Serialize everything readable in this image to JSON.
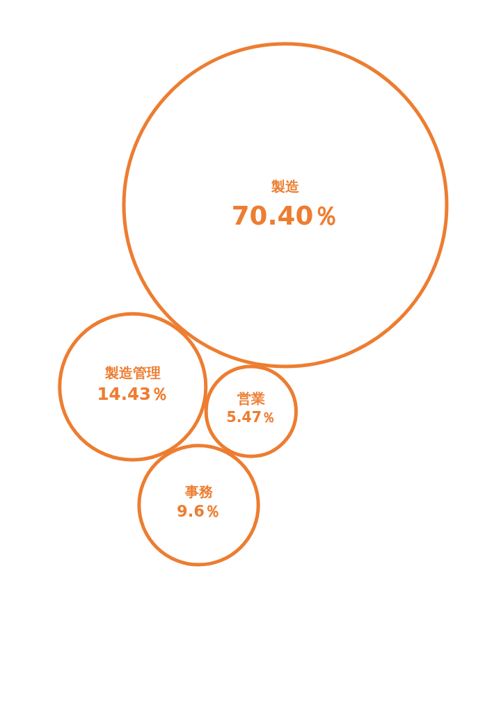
{
  "chart_data": {
    "type": "other",
    "categories": [
      "製造",
      "製造管理",
      "営業",
      "事務"
    ],
    "values": [
      70.4,
      14.43,
      5.47,
      9.6
    ],
    "value_labels": [
      "70.40％",
      "14.43％",
      "5.47％",
      "9.6％"
    ],
    "color": "#ed7d31"
  }
}
